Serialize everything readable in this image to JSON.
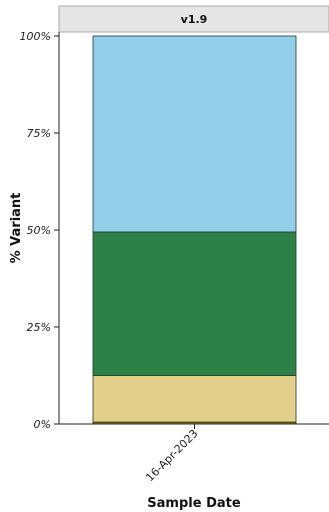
{
  "facet_label": "v1.9",
  "chart_data": {
    "type": "bar",
    "stacked": true,
    "facet": "v1.9",
    "categories": [
      "16-Apr-2023"
    ],
    "xlabel": "Sample Date",
    "ylabel": "% Variant",
    "ylim": [
      0,
      100
    ],
    "yticks": [
      "0%",
      "25%",
      "50%",
      "75%",
      "100%"
    ],
    "series": [
      {
        "values": [
          0.5
        ],
        "color": "#8B5A00"
      },
      {
        "values": [
          12.0
        ],
        "color": "#E2D08A"
      },
      {
        "values": [
          37.0
        ],
        "color": "#2E8049"
      },
      {
        "values": [
          50.5
        ],
        "color": "#94CFEA"
      }
    ],
    "grid": false,
    "legend": "none"
  }
}
